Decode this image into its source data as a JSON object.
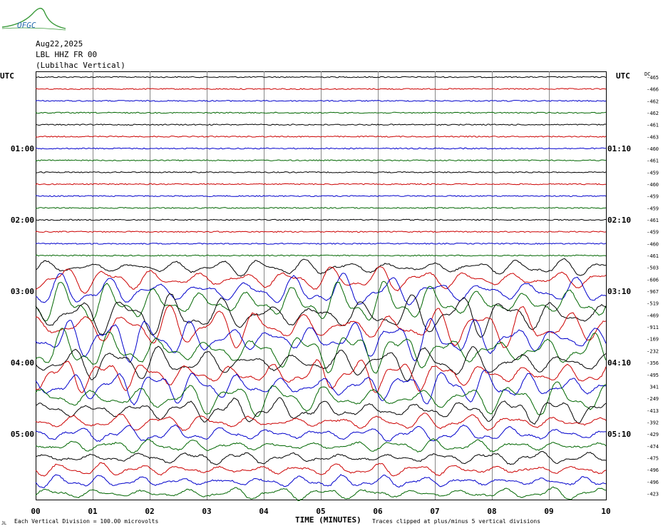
{
  "logo": {
    "text": "OFGC",
    "color": "#2a6fae"
  },
  "header": {
    "date": "Aug22,2025",
    "station": "LBL HHZ FR 00",
    "location": "(Lubilhac Vertical)"
  },
  "chart_data": {
    "type": "line",
    "xlabel": "TIME (MINUTES)",
    "x_ticks": [
      "00",
      "01",
      "02",
      "03",
      "04",
      "05",
      "06",
      "07",
      "08",
      "09",
      "10"
    ],
    "xlim": [
      0,
      10
    ],
    "left_axis_title": "UTC",
    "right_axis_title": "UTC",
    "dc_label": "DC",
    "left_time_labels": [
      "01:00",
      "02:00",
      "03:00",
      "04:00",
      "05:00"
    ],
    "right_time_labels": [
      "01:10",
      "02:10",
      "03:10",
      "04:10",
      "05:10"
    ],
    "time_label_rows": [
      6,
      12,
      18,
      24,
      30
    ],
    "trace_colors": [
      "#000000",
      "#cc0000",
      "#0000cc",
      "#006600"
    ],
    "trace_minutes_per_line": 10,
    "dc_offsets": [
      "-465",
      "-466",
      "-462",
      "-462",
      "-461",
      "-463",
      "-460",
      "-461",
      "-459",
      "-460",
      "-459",
      "-459",
      "-461",
      "-459",
      "-460",
      "-461",
      "-503",
      "-606",
      "-967",
      "-519",
      "-469",
      "-911",
      "-169",
      "-232",
      "-356",
      "-495",
      "341",
      "-249",
      "-413",
      "-392",
      "-429",
      "-474",
      "-475",
      "-496",
      "-496",
      "-423"
    ],
    "trace_amplitude": [
      1,
      1,
      1,
      1,
      1,
      1,
      1,
      1,
      1,
      1,
      1,
      1,
      1,
      1,
      1,
      1,
      2,
      3,
      4,
      5,
      5,
      5,
      5,
      5,
      4,
      4,
      4,
      4,
      3,
      2,
      2,
      1.5,
      1.5,
      1.5,
      1.5,
      1.5
    ],
    "footer_note_left": "Each Vertical Division =  100.00 microvolts",
    "footer_note_right": "Traces clipped at plus/minus 5 vertical divisions"
  }
}
